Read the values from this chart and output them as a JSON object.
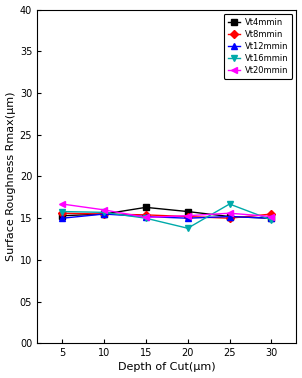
{
  "x": [
    5,
    10,
    15,
    20,
    25,
    30
  ],
  "series": [
    {
      "label": "Vt4mmin",
      "color": "black",
      "marker": "s",
      "marker_size": 4,
      "linestyle": "-",
      "linewidth": 1.0,
      "y": [
        1.53,
        1.55,
        1.63,
        1.58,
        1.52,
        1.5
      ]
    },
    {
      "label": "Vt8mmin",
      "color": "red",
      "marker": "D",
      "marker_size": 4,
      "linestyle": "-",
      "linewidth": 1.0,
      "y": [
        1.56,
        1.55,
        1.54,
        1.52,
        1.5,
        1.55
      ]
    },
    {
      "label": "Vt12mmin",
      "color": "blue",
      "marker": "^",
      "marker_size": 5,
      "linestyle": "-",
      "linewidth": 1.0,
      "y": [
        1.5,
        1.55,
        1.52,
        1.5,
        1.52,
        1.5
      ]
    },
    {
      "label": "Vt16mmin",
      "color": "#00aaaa",
      "marker": "v",
      "marker_size": 5,
      "linestyle": "-",
      "linewidth": 1.0,
      "y": [
        1.58,
        1.57,
        1.5,
        1.38,
        1.67,
        1.48
      ]
    },
    {
      "label": "Vt20mmin",
      "color": "magenta",
      "marker": "<",
      "marker_size": 5,
      "linestyle": "-",
      "linewidth": 1.0,
      "y": [
        1.67,
        1.6,
        1.51,
        1.53,
        1.56,
        1.52
      ]
    }
  ],
  "xlabel": "Depth of Cut(μm)",
  "ylabel": "Surface Roughness Rmax(μm)",
  "xlim": [
    2,
    33
  ],
  "ylim": [
    0.0,
    4.0
  ],
  "ytick_values": [
    0.0,
    0.5,
    1.0,
    1.5,
    2.0,
    2.5,
    3.0,
    3.5,
    4.0
  ],
  "ytick_labels": [
    "00",
    "05",
    "10",
    "15",
    "20",
    "25",
    "30",
    "35",
    "40"
  ],
  "xticks": [
    5,
    10,
    15,
    20,
    25,
    30
  ],
  "legend_loc": "upper right",
  "figsize": [
    3.02,
    3.78
  ],
  "dpi": 100
}
